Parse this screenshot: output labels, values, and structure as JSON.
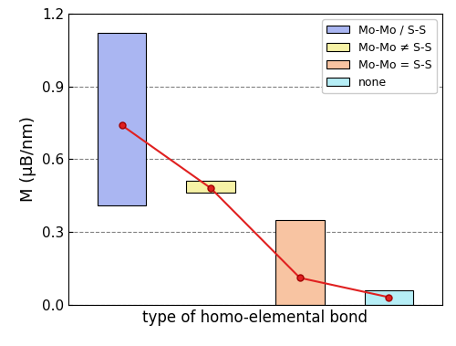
{
  "chart_data": {
    "type": "floating_bar",
    "x_label": "type of homo-elemental bond",
    "y_label": "M (μB/nm)",
    "categories": [
      null,
      null,
      null,
      null
    ],
    "series": [
      {
        "name": "Mo-Mo / S-S",
        "color": "#aab6f2",
        "range": [
          0.41,
          1.12
        ]
      },
      {
        "name": "Mo-Mo ≠ S-S",
        "color": "#f6f2a6",
        "range": [
          0.46,
          0.51
        ]
      },
      {
        "name": "Mo-Mo = S-S",
        "color": "#f8c4a2",
        "range": [
          0.0,
          0.35
        ]
      },
      {
        "name": "none",
        "color": "#b6eef6",
        "range": [
          0.0,
          0.06
        ]
      }
    ],
    "mean_line": {
      "type": "line",
      "color": "#e02020",
      "marker": "o",
      "line_style": "solid",
      "values": [
        0.74,
        0.48,
        0.11,
        0.03
      ]
    },
    "ylim": [
      0,
      1.2
    ],
    "yticks": [
      {
        "value": 0,
        "label": "0.0"
      },
      0.3,
      0.6,
      0.9,
      1.2
    ],
    "grid": true,
    "legend": "upper right",
    "tick_labels": "y"
  }
}
